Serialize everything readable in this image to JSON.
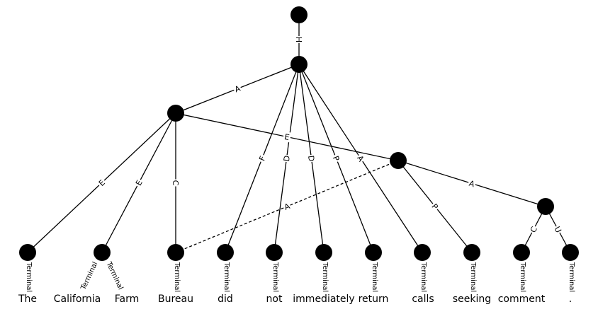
{
  "nodes": [
    {
      "id": "n0",
      "kind": "internal"
    },
    {
      "id": "n1",
      "kind": "internal"
    },
    {
      "id": "n2",
      "kind": "internal"
    },
    {
      "id": "n3",
      "kind": "internal"
    },
    {
      "id": "n4",
      "kind": "internal"
    },
    {
      "id": "t_the",
      "kind": "terminal"
    },
    {
      "id": "t_cal_farm",
      "kind": "terminal"
    },
    {
      "id": "t_bureau",
      "kind": "terminal"
    },
    {
      "id": "t_did",
      "kind": "terminal"
    },
    {
      "id": "t_not",
      "kind": "terminal"
    },
    {
      "id": "t_immediately",
      "kind": "terminal"
    },
    {
      "id": "t_return",
      "kind": "terminal"
    },
    {
      "id": "t_calls",
      "kind": "terminal"
    },
    {
      "id": "t_seeking",
      "kind": "terminal"
    },
    {
      "id": "t_comment",
      "kind": "terminal"
    },
    {
      "id": "t_period",
      "kind": "terminal"
    }
  ],
  "edges": [
    {
      "from": "n0",
      "to": "n1",
      "label": "H"
    },
    {
      "from": "n1",
      "to": "n2",
      "label": "A"
    },
    {
      "from": "n1",
      "to": "t_did",
      "label": "F"
    },
    {
      "from": "n1",
      "to": "t_not",
      "label": "D"
    },
    {
      "from": "n1",
      "to": "t_immediately",
      "label": "D"
    },
    {
      "from": "n1",
      "to": "t_return",
      "label": "P"
    },
    {
      "from": "n1",
      "to": "t_calls",
      "label": "A"
    },
    {
      "from": "n2",
      "to": "n3",
      "label": "E"
    },
    {
      "from": "n2",
      "to": "t_the",
      "label": "E"
    },
    {
      "from": "n2",
      "to": "t_cal_farm",
      "label": "E"
    },
    {
      "from": "n2",
      "to": "t_bureau",
      "label": "C"
    },
    {
      "from": "n3",
      "to": "t_bureau",
      "label": "A",
      "remote": true
    },
    {
      "from": "n3",
      "to": "t_seeking",
      "label": "P"
    },
    {
      "from": "n3",
      "to": "n4",
      "label": "A"
    },
    {
      "from": "n4",
      "to": "t_comment",
      "label": "C"
    },
    {
      "from": "n4",
      "to": "t_period",
      "label": "U"
    }
  ],
  "terminal_edge_label": "Terminal",
  "words": [
    "The",
    "California",
    "Farm",
    "Bureau",
    "did",
    "not",
    "immediately",
    "return",
    "calls",
    "seeking",
    "comment",
    "."
  ]
}
